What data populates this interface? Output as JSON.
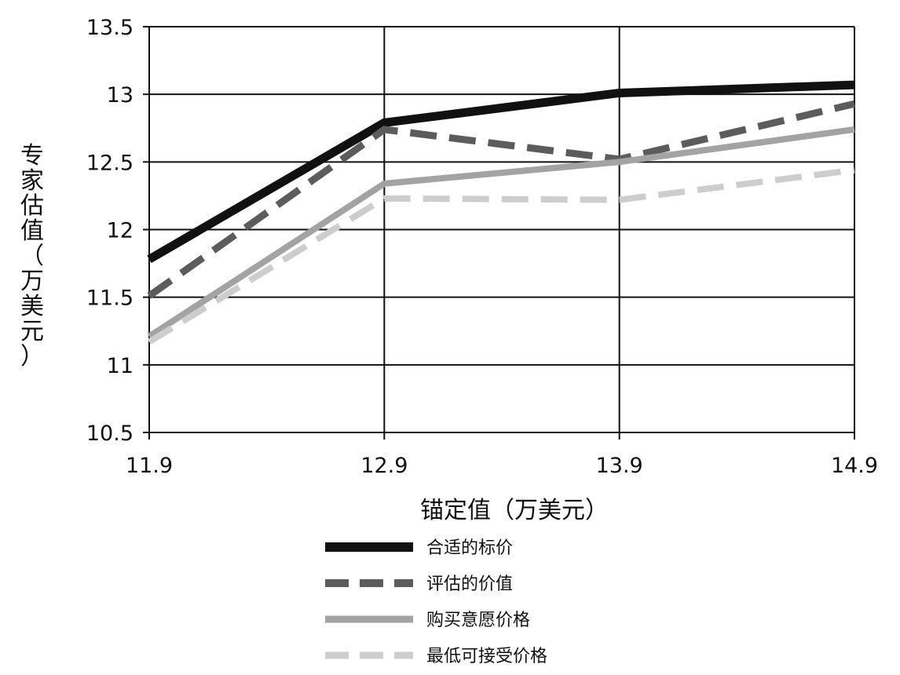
{
  "chart_data": {
    "type": "line",
    "title": "",
    "xlabel": "锚定值（万美元）",
    "ylabel_lines": [
      "专",
      "家",
      "估",
      "值",
      "（",
      "万",
      "美",
      "元",
      "）"
    ],
    "x": [
      11.9,
      12.9,
      13.9,
      14.9
    ],
    "x_tick_labels": [
      "11.9",
      "12.9",
      "13.9",
      "14.9"
    ],
    "xlim": [
      11.9,
      14.9
    ],
    "ylim": [
      10.5,
      13.5
    ],
    "y_ticks": [
      10.5,
      11,
      11.5,
      12,
      12.5,
      13,
      13.5
    ],
    "y_tick_labels": [
      "10.5",
      "11",
      "11.5",
      "12",
      "12.5",
      "13",
      "13.5"
    ],
    "grid": true,
    "legend_position": "bottom",
    "series": [
      {
        "name": "合适的标价",
        "values": [
          11.78,
          12.79,
          13.01,
          13.07
        ],
        "color": "#111111",
        "dash": "solid",
        "width": 11
      },
      {
        "name": "评估的价值",
        "values": [
          11.51,
          12.74,
          12.52,
          12.93
        ],
        "color": "#5c5c5c",
        "dash": "dashed",
        "width": 9
      },
      {
        "name": "购买意愿价格",
        "values": [
          11.21,
          12.34,
          12.5,
          12.74
        ],
        "color": "#a3a3a3",
        "dash": "solid",
        "width": 8
      },
      {
        "name": "最低可接受价格",
        "values": [
          11.17,
          12.23,
          12.22,
          12.44
        ],
        "color": "#cdcdcd",
        "dash": "dashed",
        "width": 8
      }
    ]
  }
}
